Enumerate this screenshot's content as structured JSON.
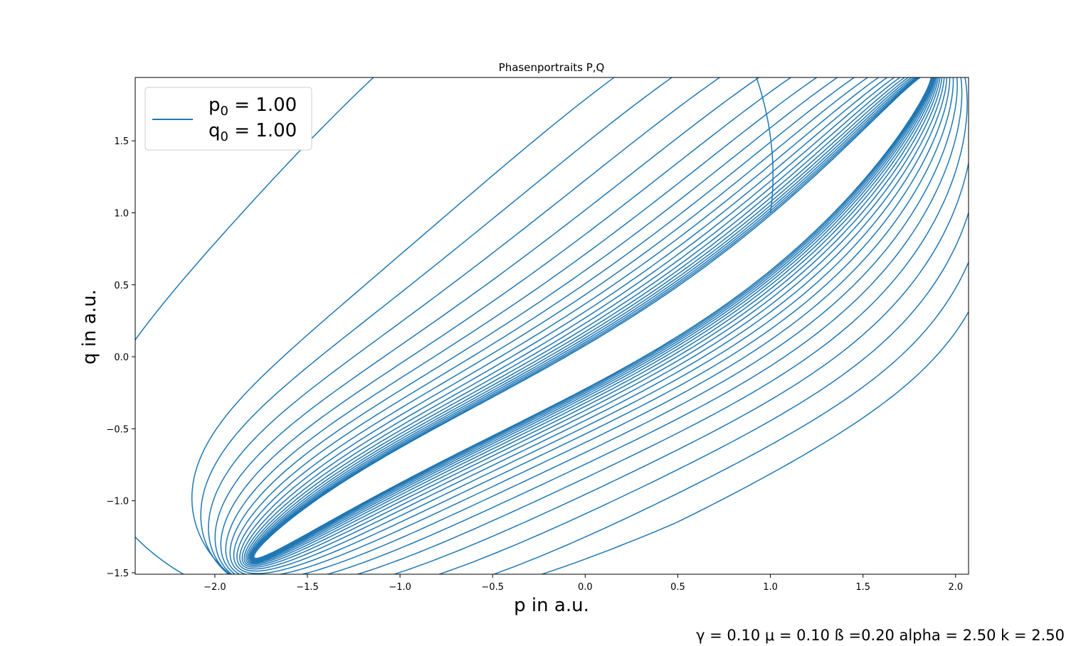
{
  "chart_data": {
    "type": "line",
    "title": "Phasenportraits P,Q",
    "xlabel": "p in a.u.",
    "ylabel": "q in a.u.",
    "xlim": [
      -2.43,
      2.07
    ],
    "ylim": [
      -1.51,
      1.94
    ],
    "xticks": [
      -2.0,
      -1.5,
      -1.0,
      -0.5,
      0.0,
      0.5,
      1.0,
      1.5,
      2.0
    ],
    "xtick_labels": [
      "−2.0",
      "−1.5",
      "−1.0",
      "−0.5",
      "0.0",
      "0.5",
      "1.0",
      "1.5",
      "2.0"
    ],
    "yticks": [
      -1.5,
      -1.0,
      -0.5,
      0.0,
      0.5,
      1.0,
      1.5
    ],
    "ytick_labels": [
      "−1.5",
      "−1.0",
      "−0.5",
      "0.0",
      "0.5",
      "1.0",
      "1.5"
    ],
    "grid": false,
    "series": [
      {
        "name": "p0 = 1.00, q0 = 1.00",
        "color": "#1f77b4",
        "initial": {
          "p": 1.0,
          "q": 1.0
        },
        "model": {
          "p_center": 0.04,
          "q_center": -0.05,
          "amp_start": 2.25,
          "amp_end": 1.81,
          "phase_shift_start": 1.1,
          "phase_shift_end": 0.07,
          "q_linear": 0.72,
          "q_quadratic": 0.1,
          "q_cubic": 0.06,
          "cycles": 22
        }
      }
    ],
    "legend": {
      "position": "top-left",
      "entries": [
        {
          "line1_base": "p",
          "line1_sub": "0",
          "line1_rest": " = 1.00",
          "line2_base": "q",
          "line2_sub": "0",
          "line2_rest": " = 1.00"
        }
      ]
    },
    "annotation": "γ = 0.10 μ = 0.10 ß =0.20 alpha = 2.50 k = 2.50"
  }
}
